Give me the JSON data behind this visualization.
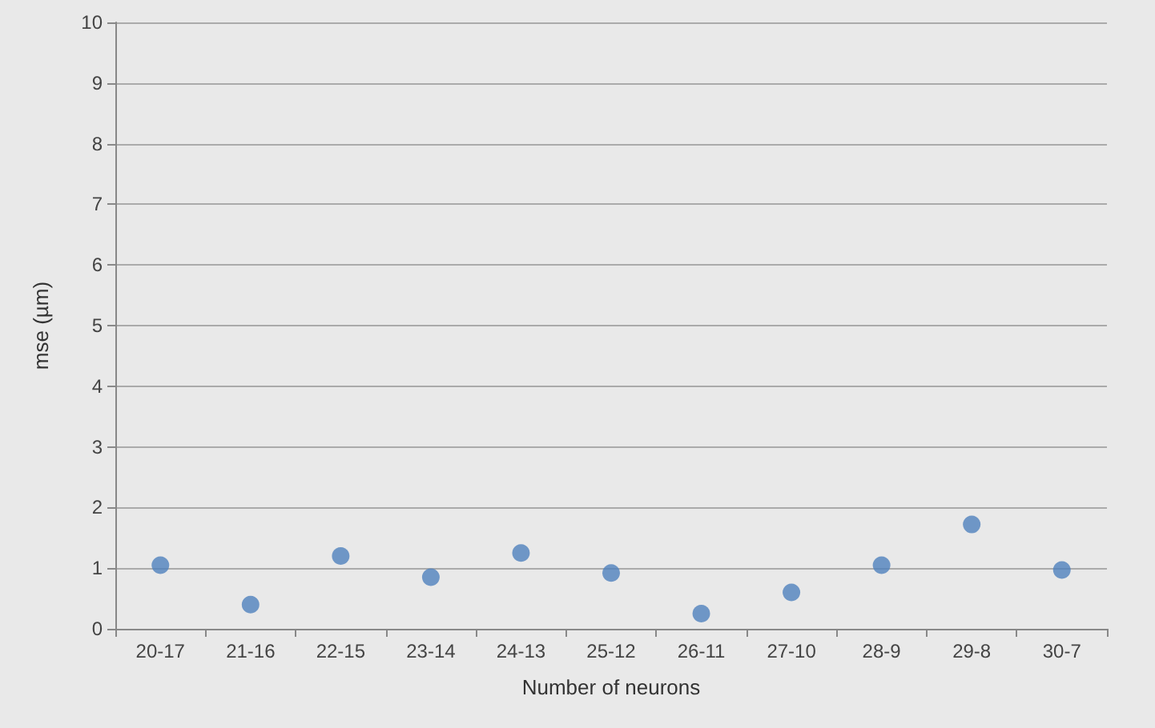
{
  "chart_data": {
    "type": "scatter",
    "xlabel": "Number of neurons",
    "ylabel": "mse (µm)",
    "categories": [
      "20-17",
      "21-16",
      "22-15",
      "23-14",
      "24-13",
      "25-12",
      "26-11",
      "27-10",
      "28-9",
      "29-8",
      "30-7"
    ],
    "series": [
      {
        "color": "#4f81bd",
        "values": [
          1.05,
          0.4,
          1.2,
          0.85,
          1.25,
          0.92,
          0.25,
          0.6,
          1.05,
          1.72,
          0.97
        ]
      }
    ],
    "ylim": [
      0,
      10
    ],
    "yticks": [
      0,
      1,
      2,
      3,
      4,
      5,
      6,
      7,
      8,
      9,
      10
    ],
    "grid": "y",
    "marker": "circle"
  }
}
